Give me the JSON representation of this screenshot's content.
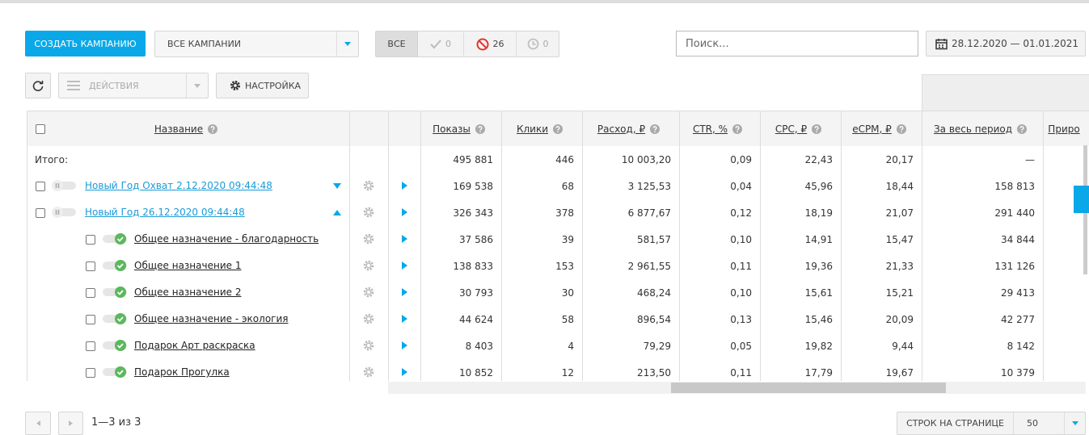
{
  "toolbar": {
    "create_button": "СОЗДАТЬ КАМПАНИЮ",
    "campaign_filter": "ВСЕ КАМПАНИИ",
    "status_all": "ВСЕ",
    "status_active_count": 0,
    "status_blocked_count": 26,
    "status_pending_count": 0,
    "search_placeholder": "Поиск...",
    "date_range": "28.12.2020 — 01.01.2021",
    "actions": "ДЕЙСТВИЯ",
    "settings": "НАСТРОЙКА"
  },
  "table": {
    "columns": [
      "Название",
      "Показы",
      "Клики",
      "Расход, ₽",
      "CTR, %",
      "CPC, ₽",
      "eCPM, ₽",
      "За весь период",
      "Приро"
    ],
    "total": {
      "label": "Итого:",
      "values": [
        "495 881",
        "446",
        "10 003,20",
        "0,09",
        "22,43",
        "20,17",
        "—"
      ]
    },
    "campaigns": [
      {
        "name": "Новый Год Охват 2.12.2020 09:44:48",
        "values": [
          "169 538",
          "68",
          "3 125,53",
          "0,04",
          "45,96",
          "18,44",
          "158 813"
        ],
        "groups": []
      },
      {
        "name": "Новый Год 26.12.2020 09:44:48",
        "values": [
          "326 343",
          "378",
          "6 877,67",
          "0,12",
          "18,19",
          "21,07",
          "291 440"
        ],
        "groups": [
          {
            "name": "Общее назначение - благодарность",
            "values": [
              "37 586",
              "39",
              "581,57",
              "0,10",
              "14,91",
              "15,47",
              "34 844"
            ]
          },
          {
            "name": "Общее назначение 1",
            "values": [
              "138 833",
              "153",
              "2 961,55",
              "0,11",
              "19,36",
              "21,33",
              "131 126"
            ]
          },
          {
            "name": "Общее назначение 2",
            "values": [
              "30 793",
              "30",
              "468,24",
              "0,10",
              "15,61",
              "15,21",
              "29 413"
            ]
          },
          {
            "name": "Общее назначение - экология",
            "values": [
              "44 624",
              "58",
              "896,54",
              "0,13",
              "15,46",
              "20,09",
              "42 277"
            ]
          },
          {
            "name": "Подарок Арт раскраска",
            "values": [
              "8 403",
              "4",
              "79,29",
              "0,05",
              "19,82",
              "9,44",
              "8 142"
            ]
          },
          {
            "name": "Подарок Прогулка",
            "values": [
              "10 852",
              "12",
              "213,50",
              "0,11",
              "17,79",
              "19,67",
              "10 379"
            ]
          }
        ]
      }
    ]
  },
  "pagination": {
    "range": "1—3 из 3",
    "rows_per_page_label": "СТРОК НА СТРАНИЦЕ",
    "rows_per_page": "50"
  }
}
